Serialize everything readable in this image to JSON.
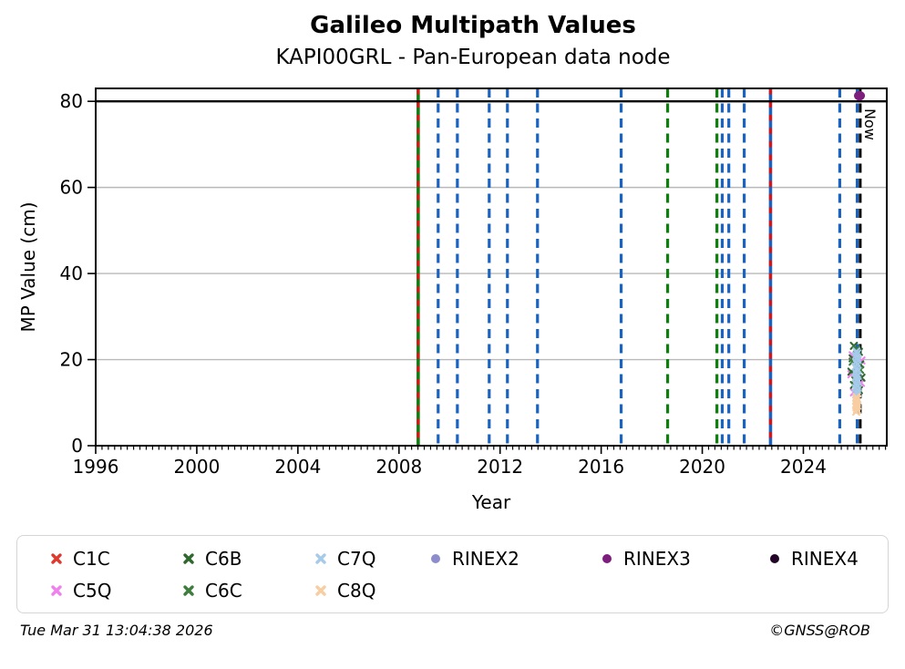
{
  "title": "Galileo Multipath Values",
  "subtitle": "KAPI00GRL - Pan-European data node",
  "footer": {
    "timestamp": "Tue Mar 31 13:04:38 2026",
    "copyright": "©GNSS@ROB"
  },
  "chart_data": {
    "type": "scatter",
    "title": "Galileo Multipath Values",
    "subtitle": "KAPI00GRL - Pan-European data node",
    "xlabel": "Year",
    "ylabel": "MP Value (cm)",
    "xlim": [
      1996,
      2027.3
    ],
    "ylim": [
      0,
      83
    ],
    "xticks": [
      1996,
      2000,
      2004,
      2008,
      2012,
      2016,
      2020,
      2024
    ],
    "yticks": [
      0,
      20,
      40,
      60,
      80
    ],
    "x_minor_step": 0.25,
    "grid": "horizontal-only",
    "grid_color": "#b9b9b9",
    "frame_color": "#000000",
    "legend_position": "below",
    "availability_line": {
      "y": 80,
      "color": "#000000"
    },
    "now_marker": {
      "x": 2026.25,
      "label": "Now",
      "color": "#000000",
      "style": "dashed"
    },
    "event_lines": [
      {
        "x": 2008.76,
        "color": "#0c800c",
        "style": "solid",
        "overlay": "#dc1414"
      },
      {
        "x": 2009.55,
        "color": "#1b63c1",
        "style": "dashed"
      },
      {
        "x": 2010.31,
        "color": "#1b63c1",
        "style": "dashed"
      },
      {
        "x": 2011.57,
        "color": "#1b63c1",
        "style": "dashed"
      },
      {
        "x": 2012.29,
        "color": "#1b63c1",
        "style": "dashed"
      },
      {
        "x": 2013.48,
        "color": "#1b63c1",
        "style": "dashed"
      },
      {
        "x": 2016.79,
        "color": "#1b63c1",
        "style": "dashed"
      },
      {
        "x": 2018.63,
        "color": "#0c800c",
        "style": "dashed"
      },
      {
        "x": 2020.58,
        "color": "#0c800c",
        "style": "dashed"
      },
      {
        "x": 2020.79,
        "color": "#1b63c1",
        "style": "dashed"
      },
      {
        "x": 2021.05,
        "color": "#1b63c1",
        "style": "dashed"
      },
      {
        "x": 2021.66,
        "color": "#1b63c1",
        "style": "dashed"
      },
      {
        "x": 2022.7,
        "color": "#1b63c1",
        "style": "solid",
        "overlay": "#dc1414"
      },
      {
        "x": 2025.44,
        "color": "#1b63c1",
        "style": "dashed"
      },
      {
        "x": 2026.13,
        "color": "#1b63c1",
        "style": "dashed"
      }
    ],
    "series": [
      {
        "name": "C1C",
        "marker": "x",
        "color": "#e0382d",
        "points": []
      },
      {
        "name": "C5Q",
        "marker": "x",
        "color": "#f080ee",
        "points": [
          [
            2025.95,
            21.0
          ],
          [
            2026.3,
            19.8
          ],
          [
            2025.9,
            16.6
          ],
          [
            2026.28,
            14.6
          ],
          [
            2026.0,
            12.4
          ]
        ]
      },
      {
        "name": "C6B",
        "marker": "x",
        "color": "#2d682d",
        "points": [
          [
            2026.0,
            23.2
          ],
          [
            2026.2,
            21.8
          ],
          [
            2025.95,
            20.3
          ],
          [
            2026.25,
            18.9
          ],
          [
            2025.9,
            17.2
          ],
          [
            2026.3,
            15.8
          ],
          [
            2026.0,
            14.1
          ],
          [
            2026.2,
            12.9
          ]
        ]
      },
      {
        "name": "C6C",
        "marker": "x",
        "color": "#3f7d3f",
        "points": [
          [
            2026.1,
            22.4
          ],
          [
            2025.95,
            19.5
          ],
          [
            2026.25,
            17.6
          ],
          [
            2026.05,
            15.2
          ],
          [
            2026.15,
            13.4
          ]
        ]
      },
      {
        "name": "C7Q",
        "marker": "x",
        "color": "#a6cbea",
        "points": [
          [
            2026.1,
            21.9
          ],
          [
            2026.13,
            21.4
          ],
          [
            2026.08,
            20.9
          ],
          [
            2026.12,
            20.4
          ],
          [
            2026.15,
            19.9
          ],
          [
            2026.09,
            19.4
          ],
          [
            2026.13,
            18.9
          ],
          [
            2026.07,
            18.4
          ],
          [
            2026.11,
            17.9
          ],
          [
            2026.15,
            17.4
          ],
          [
            2026.09,
            16.9
          ],
          [
            2026.13,
            16.4
          ],
          [
            2026.08,
            15.9
          ],
          [
            2026.12,
            15.4
          ],
          [
            2026.15,
            14.9
          ],
          [
            2026.09,
            14.4
          ],
          [
            2026.12,
            13.9
          ],
          [
            2026.08,
            13.4
          ],
          [
            2026.13,
            12.9
          ],
          [
            2026.1,
            12.4
          ],
          [
            2026.14,
            12.1
          ],
          [
            2026.11,
            16.1
          ]
        ]
      },
      {
        "name": "C8Q",
        "marker": "x",
        "color": "#f7cda1",
        "points": [
          [
            2026.1,
            11.3
          ],
          [
            2026.13,
            10.9
          ],
          [
            2026.08,
            10.5
          ],
          [
            2026.12,
            10.1
          ],
          [
            2026.09,
            9.7
          ],
          [
            2026.14,
            9.3
          ],
          [
            2026.1,
            8.9
          ],
          [
            2026.12,
            8.4
          ],
          [
            2026.09,
            7.9
          ]
        ]
      },
      {
        "name": "RINEX2",
        "marker": "dot",
        "color": "#8d8dcc",
        "points": []
      },
      {
        "name": "RINEX3",
        "marker": "dot",
        "color": "#7d1d7d",
        "points": [
          [
            2026.22,
            81.3
          ]
        ]
      },
      {
        "name": "RINEX4",
        "marker": "dot",
        "color": "#220527",
        "points": []
      }
    ]
  },
  "legend": {
    "items": [
      {
        "label": "C1C",
        "color": "#e0382d",
        "marker": "x",
        "col": 1,
        "row": 1
      },
      {
        "label": "C5Q",
        "color": "#f080ee",
        "marker": "x",
        "col": 1,
        "row": 2
      },
      {
        "label": "C6B",
        "color": "#2d682d",
        "marker": "x",
        "col": 2,
        "row": 1
      },
      {
        "label": "C6C",
        "color": "#3f7d3f",
        "marker": "x",
        "col": 2,
        "row": 2
      },
      {
        "label": "C7Q",
        "color": "#a6cbea",
        "marker": "x",
        "col": 3,
        "row": 1
      },
      {
        "label": "C8Q",
        "color": "#f7cda1",
        "marker": "x",
        "col": 3,
        "row": 2
      },
      {
        "label": "RINEX2",
        "color": "#8d8dcc",
        "marker": "dot",
        "col": 4,
        "row": 1
      },
      {
        "label": "RINEX3",
        "color": "#7d1d7d",
        "marker": "dot",
        "col": 5,
        "row": 1
      },
      {
        "label": "RINEX4",
        "color": "#220527",
        "marker": "dot",
        "col": 6,
        "row": 1
      }
    ]
  }
}
